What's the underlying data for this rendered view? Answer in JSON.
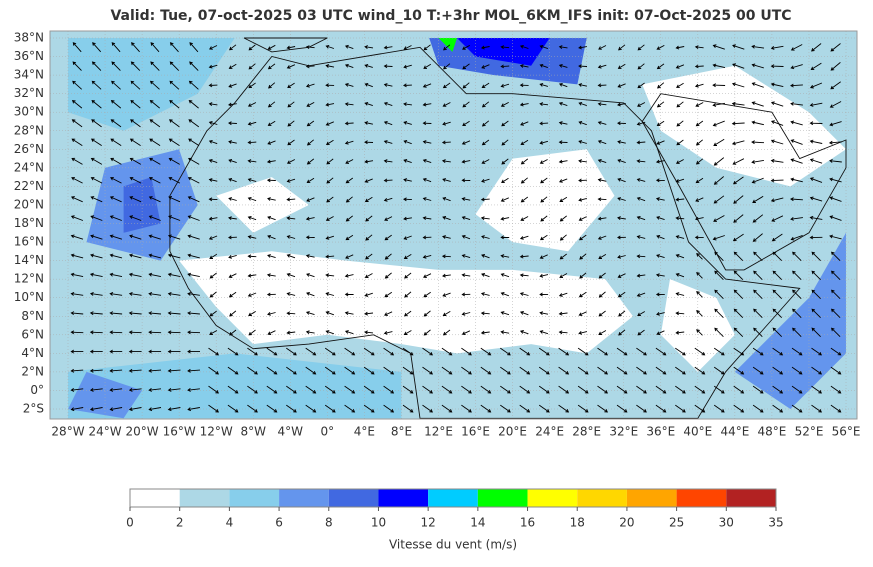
{
  "title": "Valid: Tue, 07-oct-2025   03 UTC   wind_10   T:+3hr   MOL_6KM_IFS   init: 07-Oct-2025    00 UTC",
  "map": {
    "lat_labels": [
      "38°N",
      "36°N",
      "34°N",
      "32°N",
      "30°N",
      "28°N",
      "26°N",
      "24°N",
      "22°N",
      "20°N",
      "18°N",
      "16°N",
      "14°N",
      "12°N",
      "10°N",
      "8°N",
      "6°N",
      "4°N",
      "2°N",
      "0°",
      "2°S"
    ],
    "lon_labels": [
      "28°W",
      "24°W",
      "20°W",
      "16°W",
      "12°W",
      "8°W",
      "4°W",
      "0°",
      "4°E",
      "8°E",
      "12°E",
      "16°E",
      "20°E",
      "24°E",
      "28°E",
      "32°E",
      "36°E",
      "40°E",
      "44°E",
      "48°E",
      "52°E",
      "56°E"
    ]
  },
  "colorbar": {
    "ticks": [
      0,
      2,
      4,
      6,
      8,
      10,
      12,
      14,
      16,
      18,
      20,
      25,
      30,
      35
    ],
    "colors": [
      "#ffffff",
      "#add8e6",
      "#87ceeb",
      "#6495ed",
      "#4169e1",
      "#0000ff",
      "#00ccff",
      "#00ff00",
      "#ffff00",
      "#ffd700",
      "#ffa500",
      "#ff4500",
      "#b22222"
    ],
    "label": "Vitesse du vent (m/s)"
  }
}
